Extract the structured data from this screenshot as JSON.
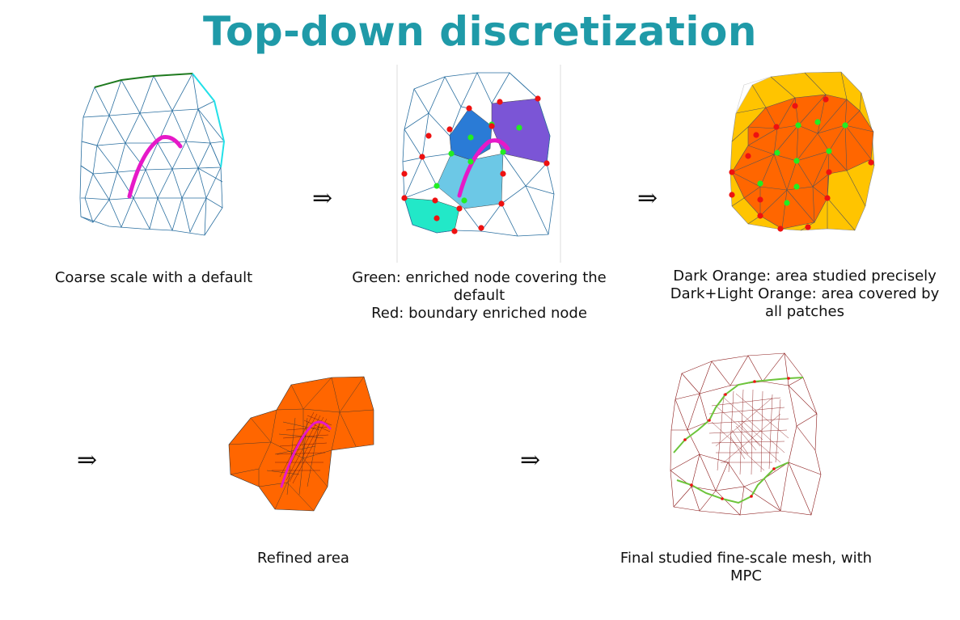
{
  "title": "Top-down discretization",
  "arrow_symbol": "⇒",
  "captions": {
    "p1": "Coarse scale with a default",
    "p2_line1": "Green: enriched node covering the default",
    "p2_line2": "Red: boundary enriched node",
    "p3_line1": "Dark Orange: area studied precisely",
    "p3_line2": "Dark+Light Orange: area covered by all patches",
    "p4": "Refined area",
    "p5": "Final studied fine-scale mesh, with MPC"
  },
  "colors": {
    "title": "#1f9aa8",
    "mesh_blue": "#2a6fa0",
    "defect_magenta": "#e619c8",
    "enriched_green": "#22ee22",
    "boundary_red": "#ee1111",
    "dark_orange": "#ff6600",
    "light_orange": "#ffc400",
    "fine_mesh": "#8b1a1a",
    "mpc_green": "#6cc43a"
  }
}
